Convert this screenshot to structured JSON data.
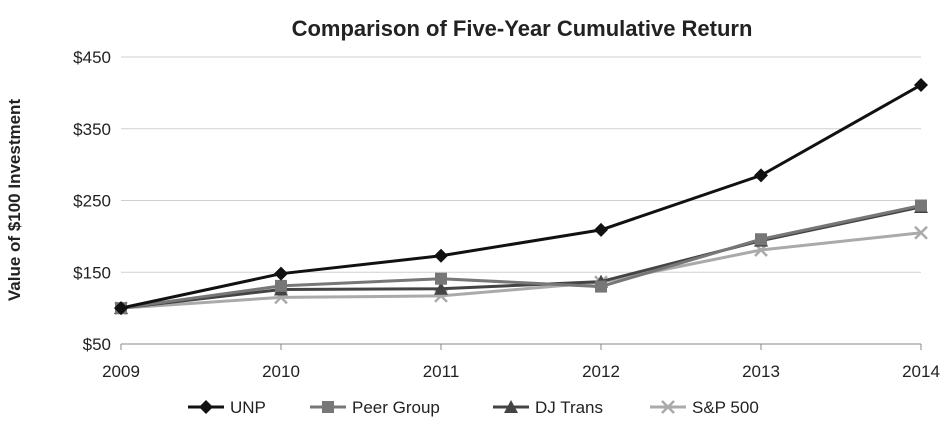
{
  "chart_data": {
    "type": "line",
    "title": "Comparison of Five-Year Cumulative Return",
    "ylabel": "Value of $100 Investment",
    "xlabel": "",
    "x": [
      "2009",
      "2010",
      "2011",
      "2012",
      "2013",
      "2014"
    ],
    "ylim": [
      50,
      450
    ],
    "yticks": [
      50,
      150,
      250,
      350,
      450
    ],
    "ytick_labels": [
      "$50",
      "$150",
      "$250",
      "$350",
      "$450"
    ],
    "grid": "horizontal",
    "legend_position": "bottom",
    "series": [
      {
        "name": "UNP",
        "values": [
          100,
          148,
          173,
          209,
          285,
          411
        ],
        "color": "#111111",
        "marker": "diamond"
      },
      {
        "name": "Peer Group",
        "values": [
          100,
          131,
          141,
          130,
          196,
          243
        ],
        "color": "#777777",
        "marker": "square"
      },
      {
        "name": "DJ Trans",
        "values": [
          100,
          126,
          127,
          137,
          194,
          241
        ],
        "color": "#444444",
        "marker": "triangle"
      },
      {
        "name": "S&P 500",
        "values": [
          100,
          115,
          117,
          136,
          181,
          205
        ],
        "color": "#aaaaaa",
        "marker": "x"
      }
    ]
  }
}
